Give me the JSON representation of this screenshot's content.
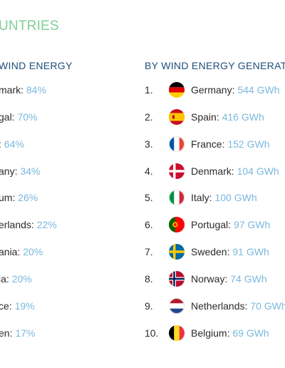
{
  "title": "UNTRIES",
  "left_header": "WIND ENERGY",
  "right_header": "BY WIND ENERGY GENERAT",
  "left_list": [
    {
      "name": "mark:",
      "value": "84%"
    },
    {
      "name": "gal:",
      "value": "70%"
    },
    {
      "name": ":",
      "value": "64%"
    },
    {
      "name": "any:",
      "value": "34%"
    },
    {
      "name": "um:",
      "value": "26%"
    },
    {
      "name": "erlands:",
      "value": "22%"
    },
    {
      "name": "ania:",
      "value": "20%"
    },
    {
      "name": "ia:",
      "value": "20%"
    },
    {
      "name": "ce:",
      "value": "19%"
    },
    {
      "name": "en:",
      "value": "17%"
    }
  ],
  "right_list": [
    {
      "rank": "1.",
      "name": "Germany:",
      "value": "544 GWh",
      "flag": "germany-flag-icon"
    },
    {
      "rank": "2.",
      "name": "Spain:",
      "value": "416 GWh",
      "flag": "spain-flag-icon"
    },
    {
      "rank": "3.",
      "name": "France:",
      "value": "152 GWh",
      "flag": "france-flag-icon"
    },
    {
      "rank": "4.",
      "name": "Denmark:",
      "value": "104 GWh",
      "flag": "denmark-flag-icon"
    },
    {
      "rank": "5.",
      "name": "Italy:",
      "value": "100 GWh",
      "flag": "italy-flag-icon"
    },
    {
      "rank": "6.",
      "name": "Portugal:",
      "value": "97 GWh",
      "flag": "portugal-flag-icon"
    },
    {
      "rank": "7.",
      "name": "Sweden:",
      "value": "91 GWh",
      "flag": "sweden-flag-icon"
    },
    {
      "rank": "8.",
      "name": "Norway:",
      "value": "74 GWh",
      "flag": "norway-flag-icon"
    },
    {
      "rank": "9.",
      "name": "Netherlands:",
      "value": "70 GWh",
      "flag": "netherlands-flag-icon"
    },
    {
      "rank": "10.",
      "name": "Belgium:",
      "value": "69 GWh",
      "flag": "belgium-flag-icon"
    }
  ],
  "colors": {
    "title": "#7fcf96",
    "header": "#1f4e79",
    "value": "#7ab8dc",
    "text": "#2b2b2b"
  }
}
